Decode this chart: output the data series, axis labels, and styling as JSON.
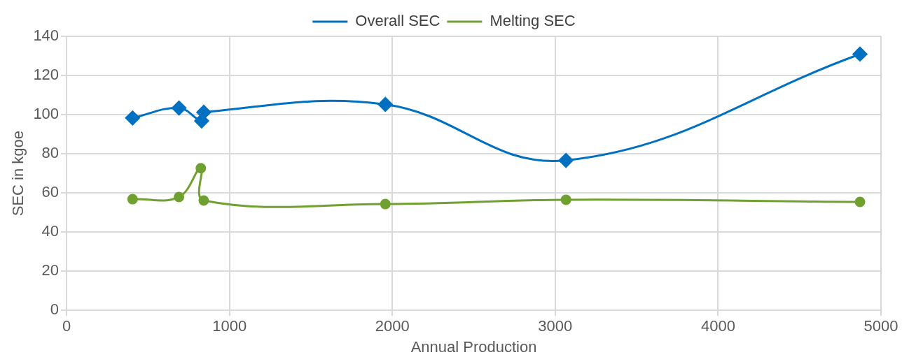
{
  "chart_data": {
    "type": "line",
    "xlabel": "Annual Production",
    "ylabel": "SEC in kgoe",
    "x": [
      405,
      690,
      829,
      842,
      1957,
      3066,
      4871
    ],
    "series": [
      {
        "name": "Overall SEC",
        "color": "#0070c0",
        "marker": "diamond",
        "values": [
          98.3,
          103.4,
          96.8,
          101.2,
          105.2,
          76.6,
          130.9
        ]
      },
      {
        "name": "Melting SEC",
        "color": "#70a030",
        "marker": "circle",
        "x": [
          405,
          690,
          824,
          842,
          1957,
          3066,
          4871
        ],
        "values": [
          56.8,
          57.9,
          72.6,
          56.1,
          54.3,
          56.5,
          55.4
        ]
      }
    ],
    "xlim": [
      0,
      5000
    ],
    "xticks": [
      0,
      1000,
      2000,
      3000,
      4000,
      5000
    ],
    "ylim": [
      0,
      140
    ],
    "yticks": [
      0,
      20,
      40,
      60,
      80,
      100,
      120,
      140
    ],
    "grid": true,
    "legend": "top"
  }
}
